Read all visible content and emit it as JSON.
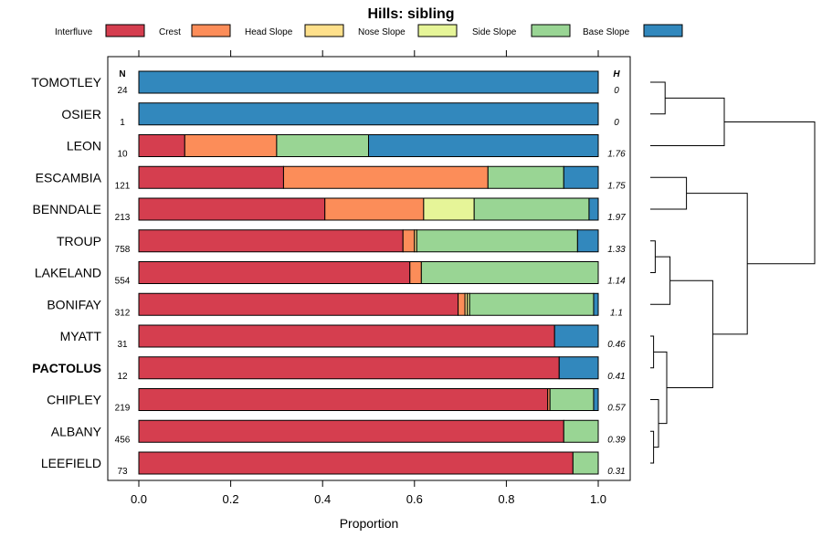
{
  "chart_data": {
    "type": "bar",
    "stacked": true,
    "orientation": "horizontal",
    "title": "Hills: sibling",
    "xlabel": "Proportion",
    "ylabel": "",
    "xlim": [
      0,
      1
    ],
    "x_ticks": [
      "0.0",
      "0.2",
      "0.4",
      "0.6",
      "0.8",
      "1.0"
    ],
    "n_header": "N",
    "h_header": "H",
    "highlight": "PACTOLUS",
    "legend": [
      {
        "name": "Interfluve",
        "color": "#d53e4f"
      },
      {
        "name": "Crest",
        "color": "#fc8d59"
      },
      {
        "name": "Head Slope",
        "color": "#fee08b"
      },
      {
        "name": "Nose Slope",
        "color": "#e6f598"
      },
      {
        "name": "Side Slope",
        "color": "#99d594"
      },
      {
        "name": "Base Slope",
        "color": "#3288bd"
      }
    ],
    "rows": [
      {
        "name": "TOMOTLEY",
        "n": "24",
        "h": "0",
        "values": [
          0,
          0,
          0,
          0,
          0,
          1.0
        ]
      },
      {
        "name": "OSIER",
        "n": "1",
        "h": "0",
        "values": [
          0,
          0,
          0,
          0,
          0,
          1.0
        ]
      },
      {
        "name": "LEON",
        "n": "10",
        "h": "1.76",
        "values": [
          0.1,
          0.2,
          0,
          0,
          0.2,
          0.5
        ]
      },
      {
        "name": "ESCAMBIA",
        "n": "121",
        "h": "1.75",
        "values": [
          0.315,
          0.445,
          0,
          0,
          0.165,
          0.075
        ]
      },
      {
        "name": "BENNDALE",
        "n": "213",
        "h": "1.97",
        "values": [
          0.405,
          0.215,
          0,
          0.11,
          0.25,
          0.02
        ]
      },
      {
        "name": "TROUP",
        "n": "758",
        "h": "1.33",
        "values": [
          0.575,
          0.025,
          0.005,
          0,
          0.35,
          0.045
        ]
      },
      {
        "name": "LAKELAND",
        "n": "554",
        "h": "1.14",
        "values": [
          0.59,
          0.025,
          0,
          0,
          0.385,
          0
        ]
      },
      {
        "name": "BONIFAY",
        "n": "312",
        "h": "1.1",
        "values": [
          0.695,
          0.015,
          0.005,
          0.005,
          0.27,
          0.01
        ]
      },
      {
        "name": "MYATT",
        "n": "31",
        "h": "0.46",
        "values": [
          0.905,
          0,
          0,
          0,
          0,
          0.095
        ]
      },
      {
        "name": "PACTOLUS",
        "n": "12",
        "h": "0.41",
        "values": [
          0.915,
          0,
          0,
          0,
          0,
          0.085
        ]
      },
      {
        "name": "CHIPLEY",
        "n": "219",
        "h": "0.57",
        "values": [
          0.89,
          0.005,
          0,
          0,
          0.095,
          0.01
        ]
      },
      {
        "name": "ALBANY",
        "n": "456",
        "h": "0.39",
        "values": [
          0.925,
          0,
          0,
          0,
          0.075,
          0
        ]
      },
      {
        "name": "LEEFIELD",
        "n": "73",
        "h": "0.31",
        "values": [
          0.945,
          0,
          0,
          0,
          0.055,
          0
        ]
      }
    ],
    "dendrogram": {
      "leaf_order": [
        "TOMOTLEY",
        "OSIER",
        "LEON",
        "ESCAMBIA",
        "BENNDALE",
        "TROUP",
        "LAKELAND",
        "BONIFAY",
        "MYATT",
        "PACTOLUS",
        "CHIPLEY",
        "ALBANY",
        "LEEFIELD"
      ],
      "merges": [
        {
          "id": "A",
          "left": "TOMOTLEY",
          "right": "OSIER",
          "height": 0.09
        },
        {
          "id": "B",
          "left": "A",
          "right": "LEON",
          "height": 0.45
        },
        {
          "id": "C",
          "left": "ESCAMBIA",
          "right": "BENNDALE",
          "height": 0.22
        },
        {
          "id": "D",
          "left": "TROUP",
          "right": "LAKELAND",
          "height": 0.03
        },
        {
          "id": "E",
          "left": "D",
          "right": "BONIFAY",
          "height": 0.12
        },
        {
          "id": "F",
          "left": "MYATT",
          "right": "PACTOLUS",
          "height": 0.02
        },
        {
          "id": "G",
          "left": "ALBANY",
          "right": "LEEFIELD",
          "height": 0.02
        },
        {
          "id": "H",
          "left": "CHIPLEY",
          "right": "G",
          "height": 0.05
        },
        {
          "id": "I",
          "left": "F",
          "right": "H",
          "height": 0.1
        },
        {
          "id": "J",
          "left": "E",
          "right": "I",
          "height": 0.38
        },
        {
          "id": "K",
          "left": "C",
          "right": "J",
          "height": 0.59
        },
        {
          "id": "L",
          "left": "B",
          "right": "K",
          "height": 1.0
        }
      ]
    }
  }
}
